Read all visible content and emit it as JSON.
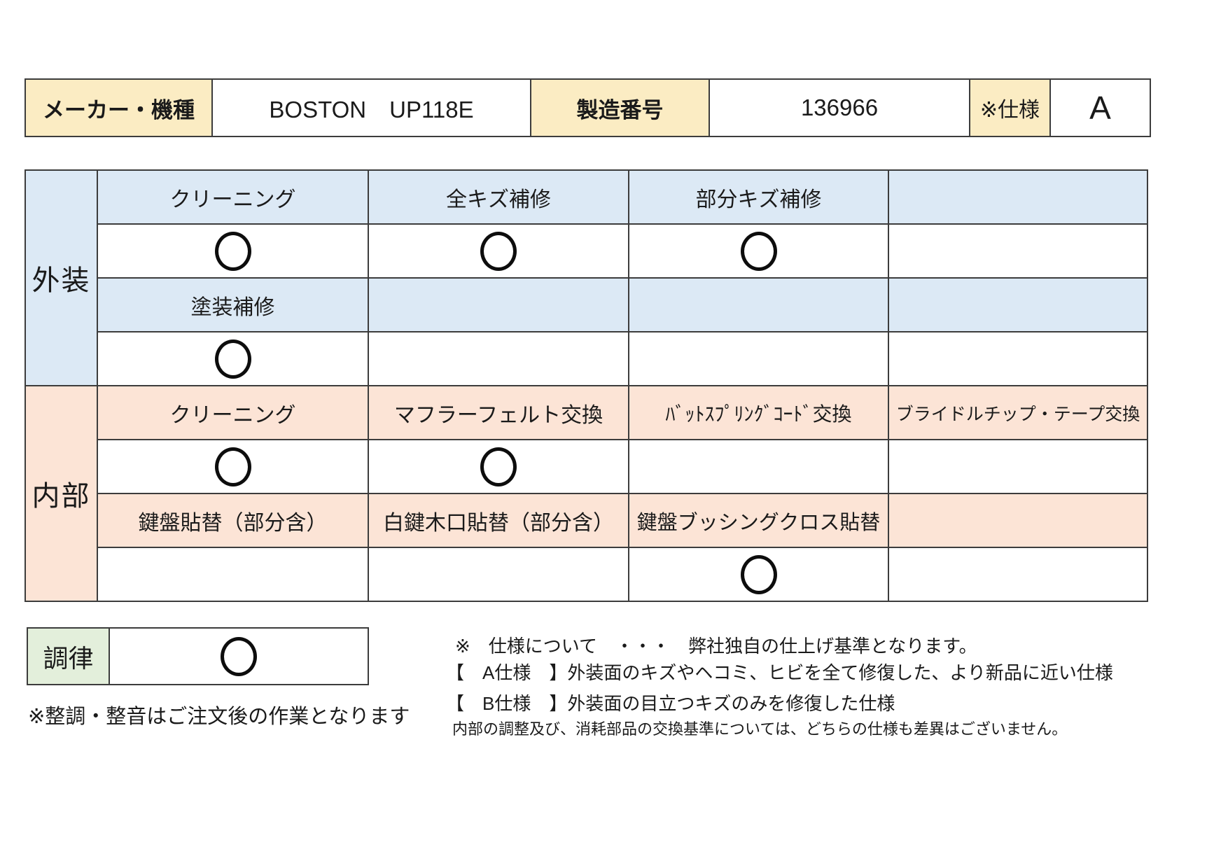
{
  "colors": {
    "header_fill": "#fbecc3",
    "exterior_fill": "#dce9f5",
    "interior_fill": "#fce4d6",
    "tuning_fill": "#e3efdb",
    "border": "#3c3c3c"
  },
  "header_table": {
    "maker_label": "メーカー・機種",
    "maker_value": "BOSTON　UP118E",
    "serial_label": "製造番号",
    "serial_value": "136966",
    "spec_label": "※仕様",
    "spec_value": "A"
  },
  "main_table": {
    "exterior_label": "外装",
    "interior_label": "内部",
    "rows": [
      {
        "kind": "header-exterior",
        "cells": [
          "クリーニング",
          "全キズ補修",
          "部分キズ補修",
          ""
        ]
      },
      {
        "kind": "marks",
        "cells": [
          "○",
          "○",
          "○",
          ""
        ]
      },
      {
        "kind": "header-exterior",
        "cells": [
          "塗装補修",
          "",
          "",
          ""
        ]
      },
      {
        "kind": "marks",
        "cells": [
          "○",
          "",
          "",
          ""
        ]
      },
      {
        "kind": "header-interior",
        "cells": [
          "クリーニング",
          "マフラーフェルト交換",
          "ﾊﾞｯﾄｽﾌﾟﾘﾝｸﾞｺｰﾄﾞ交換",
          "ブライドルチップ・テープ交換"
        ]
      },
      {
        "kind": "marks",
        "cells": [
          "○",
          "○",
          "",
          ""
        ]
      },
      {
        "kind": "header-interior",
        "cells": [
          "鍵盤貼替（部分含）",
          "白鍵木口貼替（部分含）",
          "鍵盤ブッシングクロス貼替",
          ""
        ]
      },
      {
        "kind": "marks",
        "cells": [
          "",
          "",
          "○",
          ""
        ]
      }
    ]
  },
  "tuning_table": {
    "label": "調律",
    "mark": "○"
  },
  "notes": {
    "left_note": "※整調・整音はご注文後の作業となります",
    "right_lines": [
      "※　仕様について　・・・　弊社独自の仕上げ基準となります。",
      "【　A仕様　】外装面のキズやヘコミ、ヒビを全て修復した、より新品に近い仕様",
      "【　B仕様　】外装面の目立つキズのみを修復した仕様",
      "内部の調整及び、消耗部品の交換基準については、どちらの仕様も差異はございません。"
    ]
  }
}
